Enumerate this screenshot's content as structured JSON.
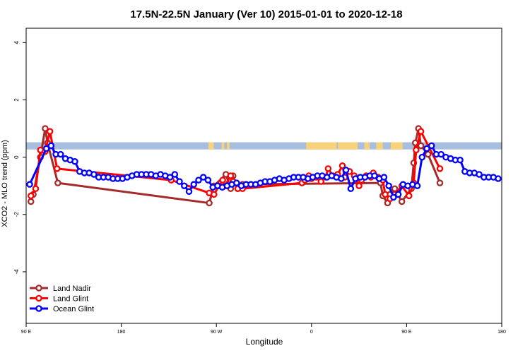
{
  "chart_data": {
    "type": "line",
    "title": "17.5N-22.5N January (Ver 10)   2015-01-01 to 2020-12-18",
    "xlabel": "Longitude",
    "ylabel": "XCO2 - MLO trend (ppm)",
    "xlim": [
      90,
      450
    ],
    "ylim": [
      -5.8,
      4.5
    ],
    "x_ticks": [
      {
        "value": 90,
        "label": "90 E"
      },
      {
        "value": 162,
        "label": "180"
      },
      {
        "value": 234,
        "label": "90 W"
      },
      {
        "value": 306,
        "label": "0"
      },
      {
        "value": 378,
        "label": "90 E"
      },
      {
        "value": 450,
        "label": "180"
      }
    ],
    "y_ticks": [
      {
        "value": 4,
        "label": "4"
      },
      {
        "value": 2,
        "label": "2"
      },
      {
        "value": 0,
        "label": "0"
      },
      {
        "value": -2,
        "label": "-2"
      },
      {
        "value": -4,
        "label": "-4"
      }
    ],
    "land_band": {
      "y_range": [
        0.27,
        0.52
      ],
      "ocean_color": "#a8bede",
      "land_color": "#f7d27a",
      "land_segments": [
        [
          228,
          232
        ],
        [
          238,
          240
        ],
        [
          242,
          244
        ],
        [
          302,
          325
        ],
        [
          326,
          341
        ],
        [
          346,
          350
        ],
        [
          355,
          360
        ],
        [
          366,
          375
        ],
        [
          393,
          397
        ]
      ]
    },
    "legend": {
      "position": "bottom-left",
      "entries": [
        "Land Nadir",
        "Land Glint",
        "Ocean Glint"
      ]
    },
    "series": [
      {
        "name": "Land Nadir",
        "color": "#a52a2a",
        "x": [
          93.6,
          95.4,
          100.8,
          104.4,
          106.2,
          114,
          228.6,
          232.2,
          241.2,
          244.8,
          246.6,
          250.2,
          253.8,
          358.2,
          360,
          363.6,
          365.4,
          369,
          374.4,
          381.6,
          383.4,
          384.6,
          387,
          388.8,
          394.2,
          403.2
        ],
        "y": [
          -1.55,
          -1.3,
          0.0,
          1.0,
          0.5,
          -0.9,
          -1.6,
          -1.0,
          -0.6,
          -1.1,
          -0.65,
          -1.1,
          -0.95,
          -0.9,
          -1.35,
          -1.6,
          -1.3,
          -1.1,
          -1.55,
          -1.1,
          -0.2,
          0.5,
          1.0,
          0.4,
          0.1,
          -0.9
        ]
      },
      {
        "name": "Land Glint",
        "color": "#ff0000",
        "x": [
          93.6,
          97.2,
          100.8,
          104.4,
          108,
          113.4,
          199.8,
          228.6,
          232.2,
          236,
          238.8,
          240.6,
          244.8,
          246.6,
          250.2,
          253.8,
          298.8,
          301,
          304,
          306,
          309.6,
          313.2,
          316.8,
          318.6,
          322.2,
          325.8,
          329.4,
          331.2,
          334.8,
          338.4,
          342,
          343.8,
          347.4,
          351,
          352.8,
          356.4,
          360,
          361.8,
          365.4,
          369,
          374.4,
          379.8,
          383.4,
          385.2,
          388.8,
          403.2
        ],
        "y": [
          -1.35,
          -1.1,
          0.25,
          0.2,
          0.9,
          -0.4,
          -0.8,
          -1.25,
          -1.3,
          -1.0,
          -0.8,
          -1.0,
          -0.65,
          -0.85,
          -1.1,
          -1.1,
          -0.9,
          -0.8,
          -0.65,
          -0.75,
          -0.7,
          -0.85,
          -0.7,
          -0.4,
          -0.65,
          -0.6,
          -0.3,
          -0.7,
          -0.5,
          -0.65,
          -1.0,
          -0.8,
          -0.65,
          -0.7,
          -0.55,
          -0.7,
          -0.8,
          -1.3,
          -1.45,
          -1.3,
          -1.0,
          -1.35,
          -0.9,
          0.25,
          0.9,
          -0.4
        ]
      },
      {
        "name": "Ocean Glint",
        "color": "#0000ff",
        "x": [
          92.7,
          105.3,
          108.9,
          112.5,
          116.1,
          119.7,
          123.3,
          126.9,
          130.5,
          134.1,
          137.7,
          141.3,
          144.9,
          148.5,
          152.1,
          155.7,
          159.3,
          162.9,
          166.5,
          170.1,
          173.7,
          177.3,
          180.9,
          184.5,
          188.1,
          191.7,
          195.3,
          198.9,
          202.5,
          206.1,
          209.7,
          213.3,
          216.9,
          220.5,
          224.1,
          227.7,
          231.3,
          234.9,
          238.5,
          242.1,
          245.7,
          249.3,
          252.9,
          256.5,
          260.1,
          263.7,
          267.3,
          270.9,
          274.5,
          278.1,
          281.7,
          285.3,
          288.9,
          292.5,
          296.1,
          299.7,
          303.3,
          306.9,
          310.5,
          314.1,
          317.7,
          321.3,
          324.9,
          328.5,
          332.1,
          335.7,
          339.3,
          342.9,
          346.5,
          350.1,
          353.7,
          357.3,
          360.9,
          364.5,
          368.1,
          371.7,
          375.3,
          378.9,
          382.5,
          386.1,
          389.7,
          393.3,
          396.9,
          400.5,
          404.1,
          407.7,
          411.3,
          414.9,
          418.5,
          422.1,
          425.7,
          429.3,
          432.9,
          436.5,
          440.1,
          443.7,
          447.3
        ],
        "y": [
          -0.95,
          0.3,
          0.4,
          0.1,
          0.1,
          -0.05,
          -0.1,
          -0.15,
          -0.5,
          -0.55,
          -0.55,
          -0.6,
          -0.7,
          -0.7,
          -0.7,
          -0.75,
          -0.75,
          -0.75,
          -0.7,
          -0.65,
          -0.6,
          -0.6,
          -0.6,
          -0.6,
          -0.65,
          -0.6,
          -0.65,
          -0.7,
          -0.6,
          -0.85,
          -1.0,
          -1.2,
          -0.95,
          -0.8,
          -0.7,
          -0.8,
          -1.05,
          -1.0,
          -1.05,
          -1.0,
          -0.95,
          -0.9,
          -1.0,
          -0.95,
          -0.95,
          -0.95,
          -0.9,
          -0.85,
          -0.85,
          -0.8,
          -0.75,
          -0.8,
          -0.75,
          -0.7,
          -0.7,
          -0.7,
          -0.75,
          -0.7,
          -0.65,
          -0.65,
          -0.7,
          -0.65,
          -0.7,
          -0.75,
          -0.45,
          -1.1,
          -0.75,
          -0.7,
          -0.7,
          -0.65,
          -0.65,
          -0.75,
          -0.7,
          -1.0,
          -1.4,
          -1.3,
          -0.95,
          -1.0,
          -0.95,
          -1.0,
          0.0,
          0.3,
          0.4,
          0.1,
          0.1,
          0.0,
          -0.05,
          -0.1,
          -0.1,
          -0.5,
          -0.55,
          -0.55,
          -0.6,
          -0.7,
          -0.7,
          -0.7,
          -0.75
        ]
      }
    ]
  }
}
